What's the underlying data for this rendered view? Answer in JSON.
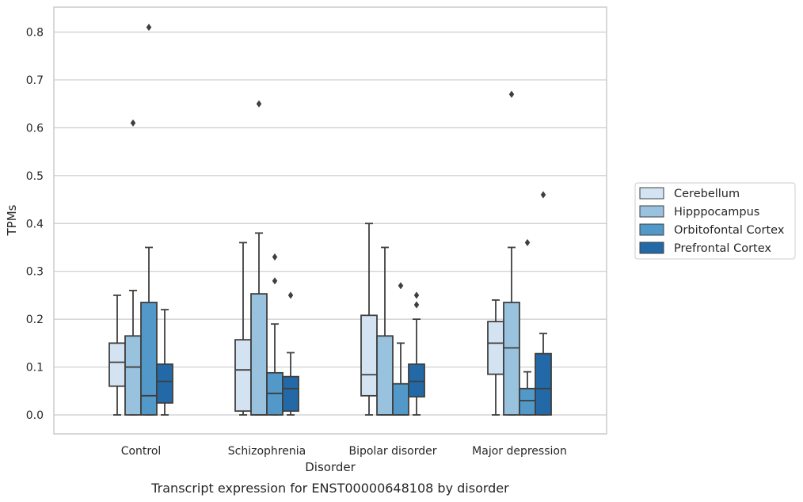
{
  "chart_data": {
    "type": "box",
    "title": "",
    "caption": "Transcript expression for ENST00000648108 by disorder",
    "xlabel": "Disorder",
    "ylabel": "TPMs",
    "ylim": [
      -0.04,
      0.855
    ],
    "yticks": [
      0.0,
      0.1,
      0.2,
      0.3,
      0.4,
      0.5,
      0.6,
      0.7,
      0.8
    ],
    "ytick_labels": [
      "0.0",
      "0.1",
      "0.2",
      "0.3",
      "0.4",
      "0.5",
      "0.6",
      "0.7",
      "0.8"
    ],
    "grid": "horizontal",
    "legend_position": "right",
    "categories": [
      "Control",
      "Schizophrenia",
      "Bipolar disorder",
      "Major depression"
    ],
    "series": [
      {
        "name": "Cerebellum",
        "color": "#d4e3f2",
        "boxes": [
          {
            "min": 0.0,
            "q1": 0.06,
            "median": 0.11,
            "q3": 0.15,
            "max": 0.25,
            "outliers": []
          },
          {
            "min": 0.0,
            "q1": 0.008,
            "median": 0.094,
            "q3": 0.157,
            "max": 0.36,
            "outliers": []
          },
          {
            "min": 0.0,
            "q1": 0.04,
            "median": 0.084,
            "q3": 0.208,
            "max": 0.4,
            "outliers": []
          },
          {
            "min": 0.0,
            "q1": 0.085,
            "median": 0.15,
            "q3": 0.195,
            "max": 0.24,
            "outliers": []
          }
        ]
      },
      {
        "name": "Hipppocampus",
        "color": "#98c2de",
        "boxes": [
          {
            "min": 0.0,
            "q1": 0.0,
            "median": 0.1,
            "q3": 0.165,
            "max": 0.26,
            "outliers": [
              0.61
            ]
          },
          {
            "min": 0.0,
            "q1": 0.0,
            "median": 0.0,
            "q3": 0.253,
            "max": 0.38,
            "outliers": [
              0.65
            ]
          },
          {
            "min": 0.0,
            "q1": 0.0,
            "median": 0.0,
            "q3": 0.165,
            "max": 0.35,
            "outliers": []
          },
          {
            "min": 0.0,
            "q1": 0.0,
            "median": 0.14,
            "q3": 0.235,
            "max": 0.35,
            "outliers": [
              0.67
            ]
          }
        ]
      },
      {
        "name": "Orbitofontal Cortex",
        "color": "#5298c8",
        "boxes": [
          {
            "min": 0.0,
            "q1": 0.0,
            "median": 0.04,
            "q3": 0.235,
            "max": 0.35,
            "outliers": [
              0.81
            ]
          },
          {
            "min": 0.0,
            "q1": 0.0,
            "median": 0.045,
            "q3": 0.088,
            "max": 0.19,
            "outliers": [
              0.28,
              0.33
            ]
          },
          {
            "min": 0.0,
            "q1": 0.0,
            "median": 0.0,
            "q3": 0.065,
            "max": 0.15,
            "outliers": [
              0.27
            ]
          },
          {
            "min": 0.0,
            "q1": 0.0,
            "median": 0.03,
            "q3": 0.055,
            "max": 0.09,
            "outliers": [
              0.36
            ]
          }
        ]
      },
      {
        "name": "Prefrontal Cortex",
        "color": "#2369a8",
        "boxes": [
          {
            "min": 0.0,
            "q1": 0.025,
            "median": 0.07,
            "q3": 0.106,
            "max": 0.22,
            "outliers": []
          },
          {
            "min": 0.0,
            "q1": 0.008,
            "median": 0.055,
            "q3": 0.08,
            "max": 0.13,
            "outliers": [
              0.25
            ]
          },
          {
            "min": 0.0,
            "q1": 0.038,
            "median": 0.07,
            "q3": 0.106,
            "max": 0.2,
            "outliers": [
              0.23,
              0.25
            ]
          },
          {
            "min": 0.0,
            "q1": 0.0,
            "median": 0.055,
            "q3": 0.128,
            "max": 0.17,
            "outliers": [
              0.46
            ]
          }
        ]
      }
    ]
  }
}
